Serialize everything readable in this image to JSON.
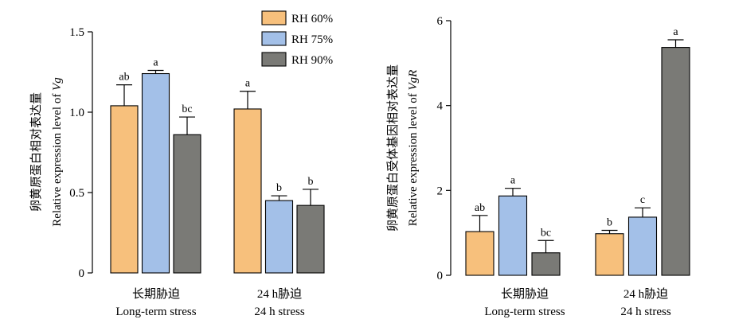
{
  "colors": {
    "RH 60%": "#f7c07c",
    "RH 75%": "#a3c0e8",
    "RH 90%": "#7a7a76"
  },
  "legend": [
    "RH 60%",
    "RH 75%",
    "RH 90%"
  ],
  "chart_data": [
    {
      "type": "bar",
      "ylabel_cn": "卵黄原蛋白相对表达量",
      "ylabel_en": "Relative expression level of ",
      "ylabel_gene": "Vg",
      "ylim": [
        0,
        1.5
      ],
      "yticks": [
        "0",
        "0.5",
        "1.0",
        "1.5"
      ],
      "ytick_values": [
        0,
        0.5,
        1.0,
        1.5
      ],
      "categories": [
        {
          "cn": "长期胁迫",
          "en": "Long-term stress"
        },
        {
          "cn": "24 h胁迫",
          "en": "24 h stress"
        }
      ],
      "series": [
        {
          "name": "RH 60%",
          "values": [
            1.04,
            1.02
          ],
          "errors": [
            0.13,
            0.11
          ],
          "labels": [
            "ab",
            "a"
          ]
        },
        {
          "name": "RH 75%",
          "values": [
            1.24,
            0.45
          ],
          "errors": [
            0.02,
            0.03
          ],
          "labels": [
            "a",
            "b"
          ]
        },
        {
          "name": "RH 90%",
          "values": [
            0.86,
            0.42
          ],
          "errors": [
            0.11,
            0.1
          ],
          "labels": [
            "bc",
            "b"
          ]
        }
      ]
    },
    {
      "type": "bar",
      "ylabel_cn": "卵黄原蛋白受体基因相对表达量",
      "ylabel_en": "Relative expression level of ",
      "ylabel_gene": "VgR",
      "ylim": [
        0,
        6
      ],
      "yticks": [
        "0",
        "2",
        "4",
        "6"
      ],
      "ytick_values": [
        0,
        2,
        4,
        6
      ],
      "categories": [
        {
          "cn": "长期胁迫",
          "en": "Long-term stress"
        },
        {
          "cn": "24 h胁迫",
          "en": "24 h stress"
        }
      ],
      "series": [
        {
          "name": "RH 60%",
          "values": [
            1.03,
            0.98
          ],
          "errors": [
            0.38,
            0.08
          ],
          "labels": [
            "ab",
            "b"
          ]
        },
        {
          "name": "RH 75%",
          "values": [
            1.87,
            1.37
          ],
          "errors": [
            0.18,
            0.22
          ],
          "labels": [
            "a",
            "c"
          ]
        },
        {
          "name": "RH 90%",
          "values": [
            0.53,
            5.37
          ],
          "errors": [
            0.29,
            0.18
          ],
          "labels": [
            "bc",
            "a"
          ]
        }
      ]
    }
  ]
}
